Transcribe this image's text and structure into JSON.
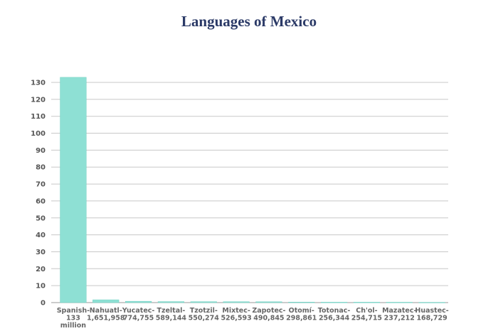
{
  "chart_data": {
    "type": "bar",
    "title": "Languages of Mexico",
    "xlabel": "",
    "ylabel": "",
    "ylim": [
      0,
      130
    ],
    "yticks": [
      0,
      10,
      20,
      30,
      40,
      50,
      60,
      70,
      80,
      90,
      100,
      110,
      120,
      130
    ],
    "grid": true,
    "bar_color": "#8ee0d4",
    "categories": [
      [
        "Spanish-",
        "133",
        "million"
      ],
      [
        "Nahuatl-",
        "1,651,958"
      ],
      [
        "Yucatec-",
        "774,755"
      ],
      [
        "Tzeltal-",
        "589,144"
      ],
      [
        "Tzotzil-",
        "550,274"
      ],
      [
        "Mixtec-",
        "526,593"
      ],
      [
        "Zapotec-",
        "490,845"
      ],
      [
        "Otomí-",
        "298,861"
      ],
      [
        "Totonac-",
        "256,344"
      ],
      [
        "Ch'ol-",
        "254,715"
      ],
      [
        "Mazatec-",
        "237,212"
      ],
      [
        "Huastec-",
        "168,729"
      ]
    ],
    "values": [
      133,
      1.651958,
      0.774755,
      0.589144,
      0.550274,
      0.526593,
      0.490845,
      0.298861,
      0.256344,
      0.254715,
      0.237212,
      0.168729
    ]
  }
}
